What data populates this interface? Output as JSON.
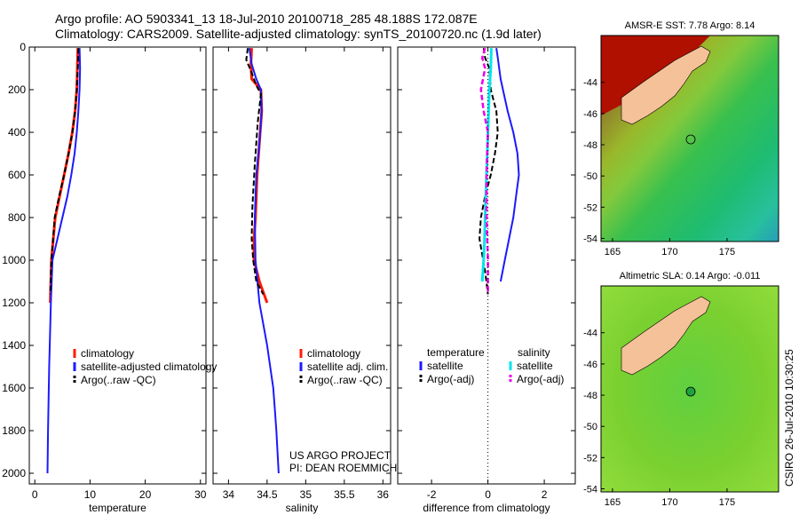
{
  "header": {
    "line1": "Argo profile: AO 5903341_13 18-Jul-2010 20100718_285 48.188S 172.087E",
    "line2": "Climatology: CARS2009. Satellite-adjusted climatology: synTS_20100720.nc (1.9d later)"
  },
  "credit": "CSIRO 26-Jul-2010 10:30:25",
  "project": {
    "line1": "US ARGO PROJECT",
    "line2": "PI: DEAN ROEMMICH"
  },
  "colors": {
    "climatology": "#ff1a00",
    "satellite": "#1a1aff",
    "argo": "#000000",
    "salinity_sat": "#00e5ee",
    "salinity_argo": "#ee00ee",
    "land": "#f5c199"
  },
  "chart_data": [
    {
      "type": "line",
      "id": "temperature",
      "xlabel": "temperature",
      "ylabel": "",
      "xlim": [
        -1,
        31
      ],
      "ylim": [
        2050,
        0
      ],
      "xticks": [
        "0",
        "10",
        "20",
        "30"
      ],
      "yticks": [
        "0",
        "200",
        "400",
        "600",
        "800",
        "1000",
        "1200",
        "1400",
        "1600",
        "1800",
        "2000"
      ],
      "legend": [
        "climatology",
        "satellite-adjusted climatology",
        "Argo(..raw -QC)"
      ],
      "series": [
        {
          "name": "climatology",
          "x": [
            7.8,
            7.7,
            7.6,
            7.3,
            6.8,
            6.1,
            5.3,
            4.5,
            3.7,
            3.0,
            2.8
          ],
          "y": [
            5,
            100,
            200,
            300,
            400,
            500,
            600,
            700,
            800,
            1000,
            1200
          ]
        },
        {
          "name": "satellite-adjusted climatology",
          "x": [
            8.1,
            8.2,
            8.1,
            7.9,
            7.6,
            7.2,
            6.6,
            5.9,
            5.0,
            4.1,
            3.2,
            2.9,
            2.6,
            2.4,
            2.3
          ],
          "y": [
            5,
            100,
            200,
            300,
            400,
            500,
            600,
            700,
            800,
            900,
            1000,
            1200,
            1500,
            1800,
            2000
          ]
        },
        {
          "name": "Argo(..raw -QC)",
          "x": [
            7.9,
            7.8,
            7.6,
            7.3,
            6.8,
            6.1,
            5.3,
            4.4,
            3.6,
            3.0,
            2.8
          ],
          "y": [
            5,
            100,
            200,
            300,
            400,
            500,
            600,
            700,
            800,
            1000,
            1160
          ]
        }
      ]
    },
    {
      "type": "line",
      "id": "salinity",
      "xlabel": "salinity",
      "ylabel": "",
      "xlim": [
        33.8,
        36.1
      ],
      "ylim": [
        2050,
        0
      ],
      "xticks": [
        "34",
        "34.5",
        "35",
        "35.5",
        "36"
      ],
      "legend": [
        "climatology",
        "satellite adj. clim.",
        "Argo(..raw -QC)"
      ],
      "series": [
        {
          "name": "climatology",
          "x": [
            34.3,
            34.29,
            34.3,
            34.42,
            34.43,
            34.4,
            34.37,
            34.35,
            34.33,
            34.33,
            34.4,
            34.5
          ],
          "y": [
            5,
            80,
            150,
            200,
            300,
            450,
            600,
            800,
            900,
            1000,
            1100,
            1200
          ]
        },
        {
          "name": "satellite adj. clim.",
          "x": [
            34.27,
            34.3,
            34.36,
            34.42,
            34.43,
            34.4,
            34.36,
            34.34,
            34.35,
            34.4,
            34.5,
            34.58,
            34.6,
            34.62,
            34.65
          ],
          "y": [
            5,
            80,
            150,
            200,
            300,
            450,
            600,
            800,
            1000,
            1200,
            1400,
            1600,
            1700,
            1800,
            2000
          ]
        },
        {
          "name": "Argo(..raw -QC)",
          "x": [
            34.25,
            34.23,
            34.3,
            34.36,
            34.42,
            34.38,
            34.34,
            34.31,
            34.3,
            34.32,
            34.36,
            34.45
          ],
          "y": [
            5,
            60,
            120,
            180,
            220,
            350,
            550,
            750,
            900,
            1000,
            1100,
            1160
          ]
        }
      ]
    },
    {
      "type": "line",
      "id": "difference",
      "xlabel": "difference from climatology",
      "ylabel": "",
      "xlim": [
        -3.2,
        3.1
      ],
      "ylim": [
        2050,
        0
      ],
      "xticks": [
        "-2",
        "0",
        "2"
      ],
      "legend_titles": [
        "temperature",
        "salinity"
      ],
      "legend": [
        "satellite",
        "Argo(-adj)",
        "satellite",
        "Argo(-adj)"
      ],
      "series": [
        {
          "name": "temperature satellite",
          "x": [
            0.3,
            0.35,
            0.45,
            0.7,
            0.9,
            1.05,
            1.1,
            1.0,
            0.9,
            0.75,
            0.6,
            0.45
          ],
          "y": [
            5,
            50,
            150,
            300,
            400,
            500,
            600,
            700,
            800,
            900,
            1000,
            1100
          ]
        },
        {
          "name": "temperature Argo(-adj)",
          "x": [
            -0.15,
            -0.1,
            0.05,
            0.1,
            0.3,
            0.35,
            0.25,
            0.1,
            -0.1,
            -0.25,
            -0.3,
            -0.1,
            0.0
          ],
          "y": [
            5,
            50,
            100,
            200,
            300,
            400,
            500,
            600,
            700,
            800,
            900,
            1050,
            1160
          ]
        },
        {
          "name": "salinity satellite",
          "x": [
            0.12,
            0.1,
            0.05,
            0.0,
            -0.05,
            -0.1,
            -0.12,
            -0.15,
            -0.2
          ],
          "y": [
            5,
            100,
            200,
            400,
            600,
            800,
            900,
            1000,
            1100
          ]
        },
        {
          "name": "salinity Argo(-adj)",
          "x": [
            -0.1,
            -0.2,
            -0.1,
            -0.25,
            -0.15,
            0.0,
            -0.05,
            -0.05,
            0.0,
            0.0,
            0.0
          ],
          "y": [
            5,
            50,
            100,
            200,
            300,
            400,
            600,
            800,
            1000,
            1100,
            1160
          ]
        },
        {
          "name": "zero line",
          "x": [
            0,
            0
          ],
          "y": [
            0,
            2050
          ]
        }
      ]
    },
    {
      "type": "heatmap",
      "id": "sst_map",
      "title": "AMSR-E SST: 7.78 Argo: 8.14",
      "xlim": [
        164,
        179.5
      ],
      "ylim": [
        -54.2,
        -41
      ],
      "xticks": [
        "165",
        "170",
        "175"
      ],
      "yticks": [
        "-44",
        "-46",
        "-48",
        "-50",
        "-52",
        "-54"
      ],
      "argo_position": {
        "lon": 172.087,
        "lat": -48.188
      }
    },
    {
      "type": "heatmap",
      "id": "sla_map",
      "title": "Altimetric SLA: 0.14 Argo: -0.011",
      "xlim": [
        164,
        179.5
      ],
      "ylim": [
        -54.2,
        -41
      ],
      "xticks": [
        "165",
        "170",
        "175"
      ],
      "yticks": [
        "-44",
        "-46",
        "-48",
        "-50",
        "-52",
        "-54"
      ],
      "argo_position": {
        "lon": 172.087,
        "lat": -48.188
      }
    }
  ]
}
